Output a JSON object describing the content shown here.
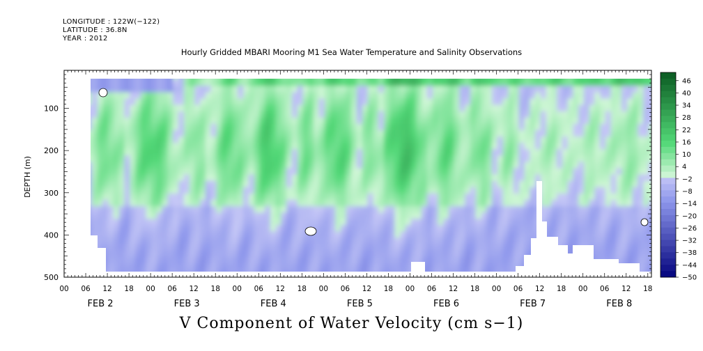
{
  "header": {
    "longitude": "LONGITUDE : 122W(−122)",
    "latitude": "LATITUDE : 36.8N",
    "year": "YEAR : 2012"
  },
  "chart_data": {
    "type": "heatmap",
    "title": "Hourly Gridded MBARI Mooring M1 Sea Water Temperature and Salinity Observations",
    "footer": "V Component of Water Velocity (cm s−1)",
    "ylabel": "DEPTH (m)",
    "x_range_hours": [
      0,
      162
    ],
    "y_range": [
      10,
      500
    ],
    "y_inverted": true,
    "y_ticks": [
      100,
      200,
      300,
      400,
      500
    ],
    "x_hour_ticks": [
      "00",
      "06",
      "12",
      "18",
      "00",
      "06",
      "12",
      "18",
      "00",
      "06",
      "12",
      "18",
      "00",
      "06",
      "12",
      "18",
      "00",
      "06",
      "12",
      "18",
      "00",
      "06",
      "12",
      "18",
      "00",
      "06",
      "12",
      "18"
    ],
    "x_day_labels": [
      "FEB  2",
      "FEB  3",
      "FEB  4",
      "FEB  5",
      "FEB  6",
      "FEB  7",
      "FEB  8"
    ],
    "colorbar_labels": [
      "46",
      "40",
      "34",
      "28",
      "22",
      "16",
      "10",
      "4",
      "−2",
      "−8",
      "−14",
      "−20",
      "−26",
      "−32",
      "−38",
      "−44",
      "−50"
    ],
    "colorbar_range": [
      -50,
      50
    ],
    "colorbar_step": 3,
    "colors": {
      "negative_light": "#c6c8f6",
      "negative_mid": "#8f98ec",
      "negative_dark": "#00007a",
      "positive_light": "#cff6d6",
      "positive_mid": "#52d877",
      "positive_dark": "#0b5a22"
    }
  }
}
